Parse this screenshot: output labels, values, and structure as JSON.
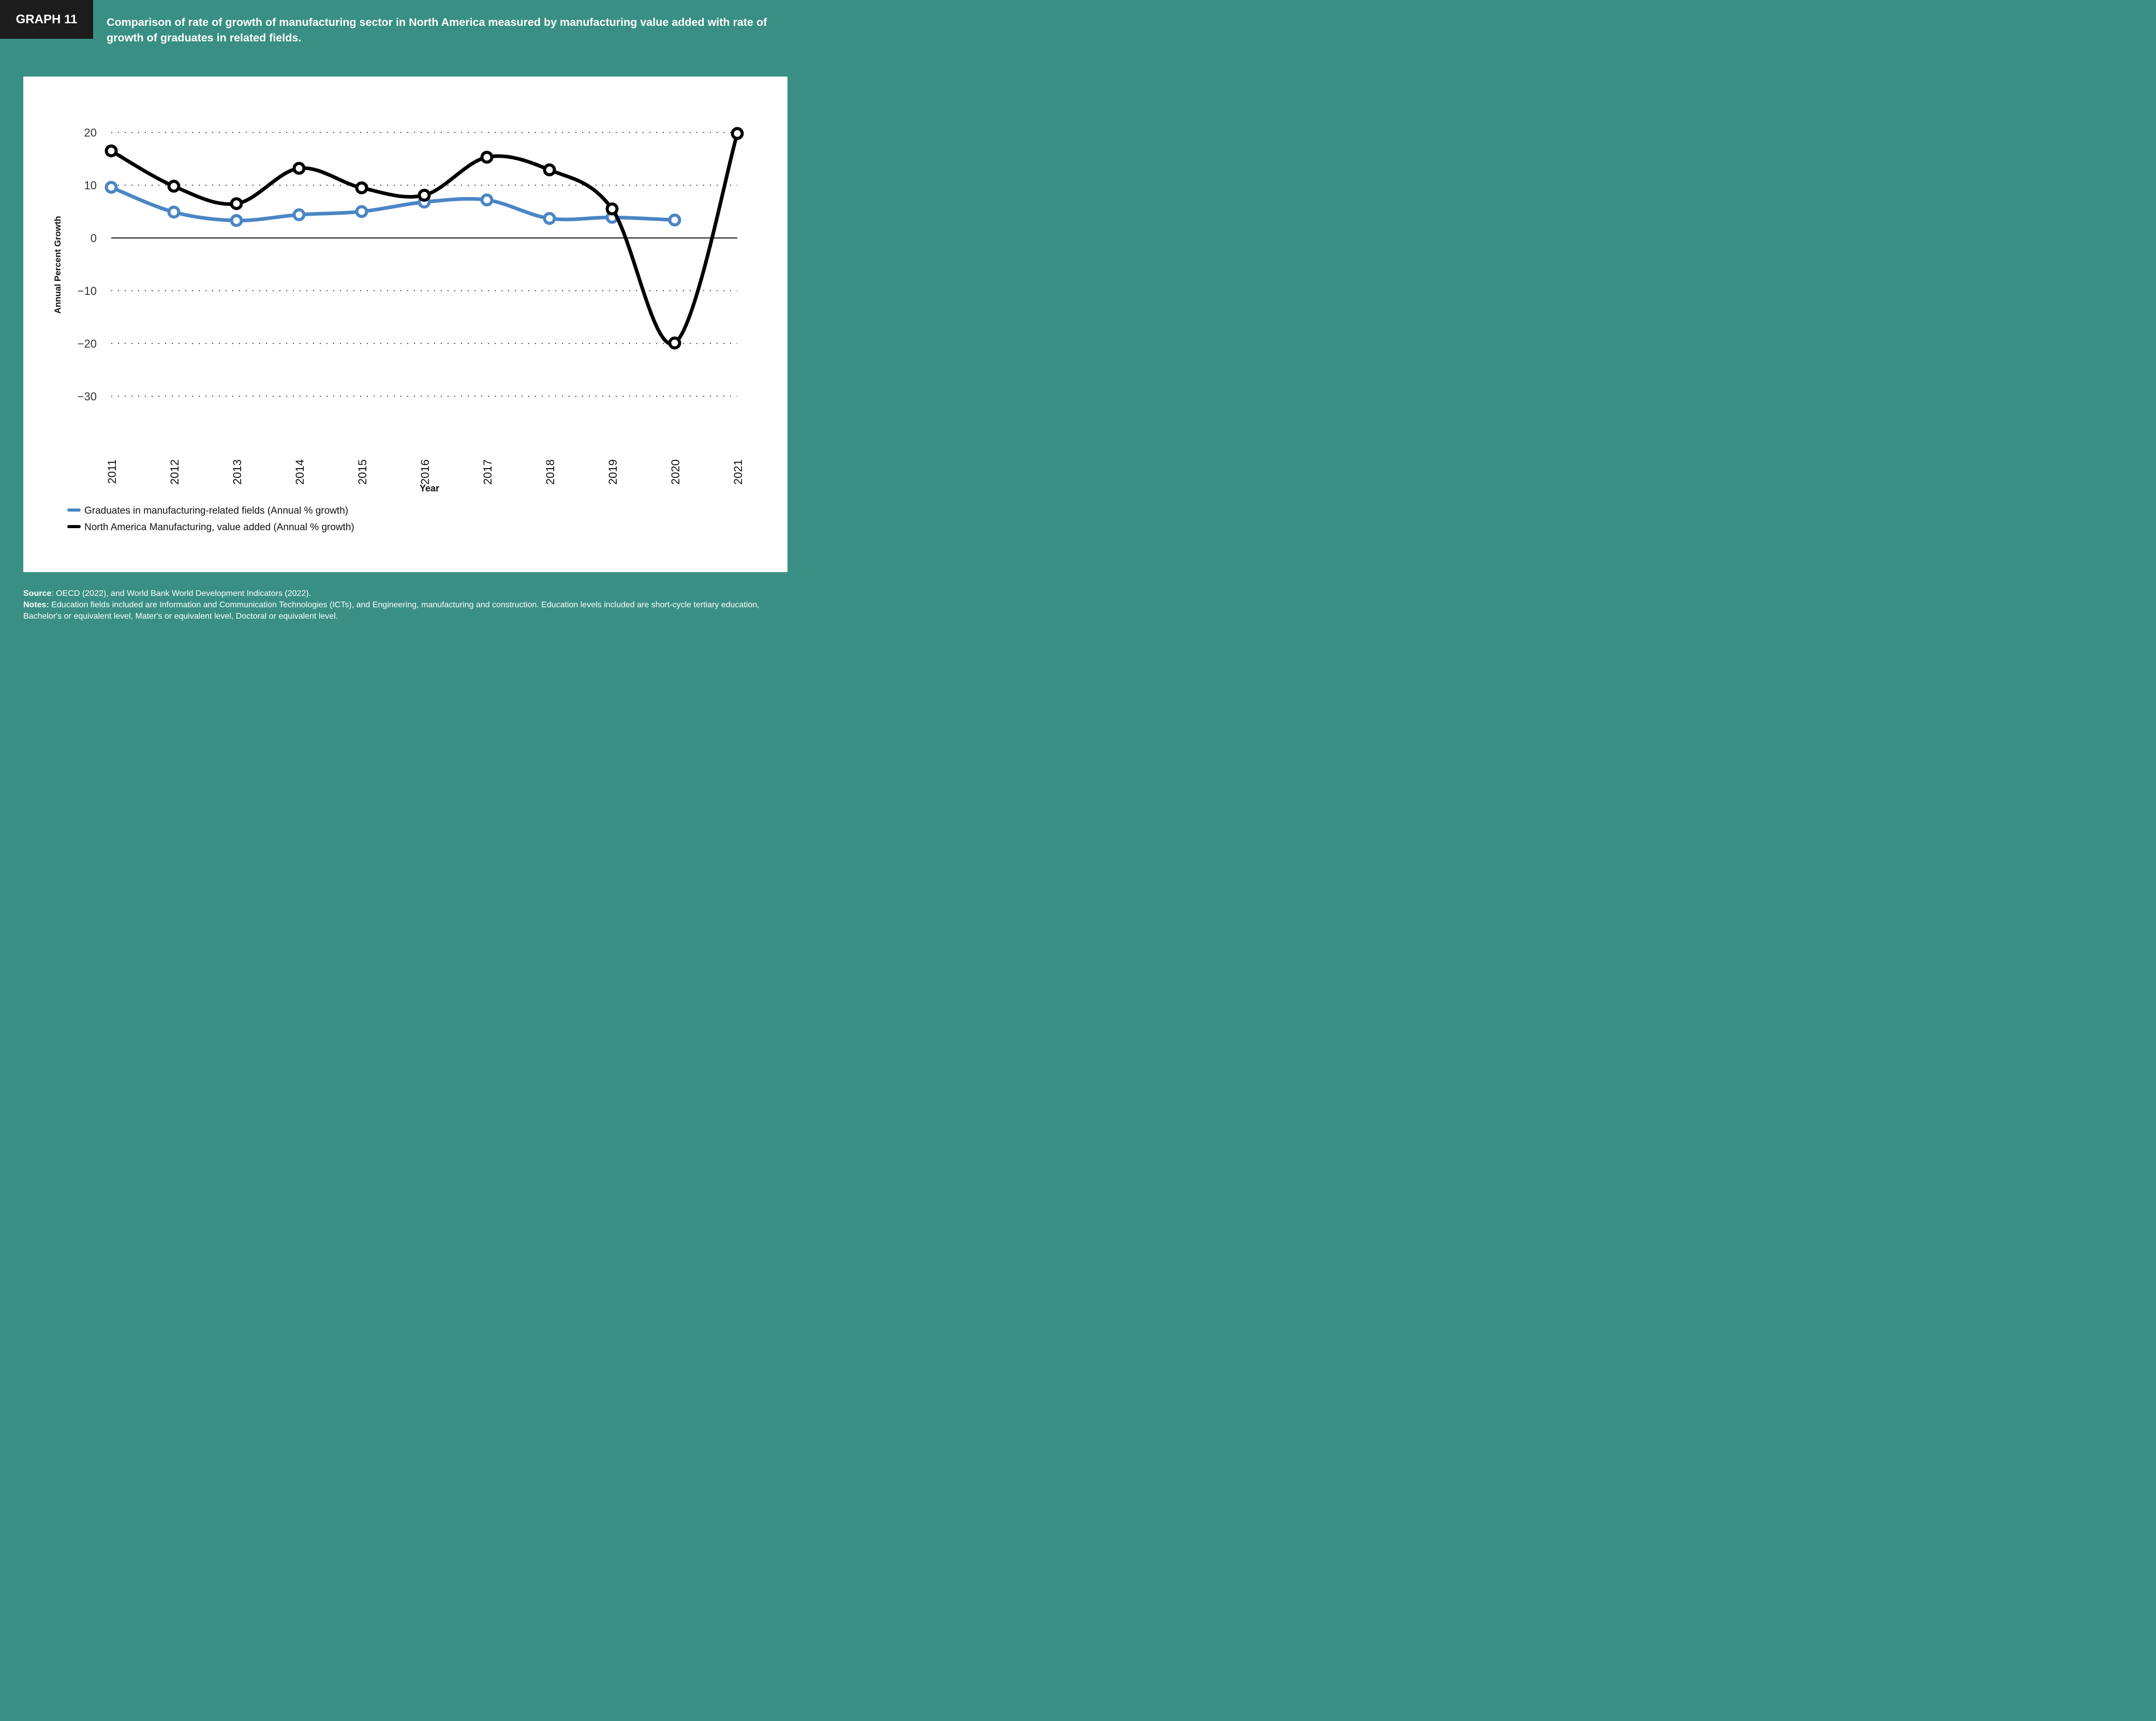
{
  "header": {
    "tag": "GRAPH 11",
    "title": "Comparison of rate of growth of manufacturing sector in North America measured by manufacturing value added with rate of growth of graduates in related fields."
  },
  "footer": {
    "source_label": "Source",
    "source_text": ": OECD (2022), and World Bank World Development Indicators (2022).",
    "notes_label": "Notes:",
    "notes_text": " Education fields included are Information and Communication Technologies (ICTs), and Engineering, manufacturing and construction. Education levels  included are short-cycle tertiary education, Bachelor's or equivalent level, Mater's or equivalent level, Doctoral or equivalent level."
  },
  "chart_data": {
    "type": "line",
    "title": "Comparison of rate of growth of manufacturing sector in North America measured by manufacturing value added with rate of growth of graduates in related fields.",
    "xlabel": "Year",
    "ylabel": "Annual Percent Growth",
    "x": [
      "2011",
      "2012",
      "2013",
      "2014",
      "2015",
      "2016",
      "2017",
      "2018",
      "2019",
      "2020",
      "2021"
    ],
    "ylim": [
      -30,
      20
    ],
    "yticks": [
      20,
      10,
      0,
      -10,
      -20,
      -30
    ],
    "ytick_labels": [
      "20",
      "10",
      "0",
      "−10",
      "−20",
      "−30"
    ],
    "grid": "horizontal dotted",
    "legend_position": "bottom-left",
    "series": [
      {
        "name": "Graduates in manufacturing-related fields (Annual % growth)",
        "color": "#4a86c5",
        "values": [
          9.6,
          4.9,
          3.3,
          4.4,
          5.0,
          6.8,
          7.2,
          3.7,
          3.9,
          3.4,
          null
        ]
      },
      {
        "name": "North America Manufacturing, value added (Annual % growth)",
        "color": "#000000",
        "values": [
          16.5,
          9.8,
          6.5,
          13.2,
          9.5,
          8.1,
          15.3,
          12.9,
          5.5,
          -19.9,
          19.8
        ]
      }
    ]
  }
}
